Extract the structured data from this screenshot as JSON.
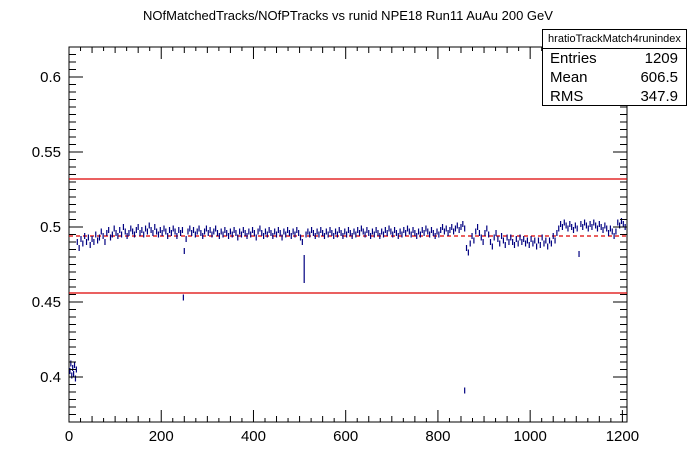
{
  "chart_data": {
    "type": "scatter",
    "title": "NOfMatchedTracks/NOfPTracks vs runid NPE18 Run11 AuAu 200 GeV",
    "xlim": [
      0,
      1210
    ],
    "ylim": [
      0.37,
      0.62
    ],
    "x_ticks": [
      0,
      200,
      400,
      600,
      800,
      1000,
      1200
    ],
    "y_ticks": [
      0.4,
      0.45,
      0.5,
      0.55,
      0.6
    ],
    "x_tick_labels": [
      "0",
      "200",
      "400",
      "600",
      "800",
      "1000",
      "1200"
    ],
    "y_tick_labels": [
      "0.4",
      "0.45",
      "0.5",
      "0.55",
      "0.6"
    ],
    "reference_lines": [
      {
        "y": 0.532,
        "style": "solid",
        "color": "#dd0000"
      },
      {
        "y": 0.494,
        "style": "dashed",
        "color": "#dd0000"
      },
      {
        "y": 0.456,
        "style": "solid",
        "color": "#dd0000"
      }
    ],
    "series": [
      {
        "color": "#000080",
        "points": [
          [
            2,
            0.404
          ],
          [
            4,
            0.409
          ],
          [
            6,
            0.401
          ],
          [
            8,
            0.406
          ],
          [
            10,
            0.402
          ],
          [
            12,
            0.408
          ],
          [
            14,
            0.399
          ],
          [
            16,
            0.405
          ],
          [
            18,
            0.49
          ],
          [
            22,
            0.486
          ],
          [
            26,
            0.492
          ],
          [
            30,
            0.489
          ],
          [
            34,
            0.494
          ],
          [
            38,
            0.49
          ],
          [
            42,
            0.493
          ],
          [
            46,
            0.488
          ],
          [
            50,
            0.492
          ],
          [
            54,
            0.49
          ],
          [
            58,
            0.495
          ],
          [
            62,
            0.491
          ],
          [
            66,
            0.493
          ],
          [
            70,
            0.497
          ],
          [
            74,
            0.494
          ],
          [
            78,
            0.49
          ],
          [
            82,
            0.496
          ],
          [
            86,
            0.498
          ],
          [
            90,
            0.493
          ],
          [
            94,
            0.495
          ],
          [
            98,
            0.499
          ],
          [
            102,
            0.496
          ],
          [
            106,
            0.494
          ],
          [
            110,
            0.498
          ],
          [
            114,
            0.495
          ],
          [
            118,
            0.5
          ],
          [
            122,
            0.497
          ],
          [
            126,
            0.494
          ],
          [
            130,
            0.496
          ],
          [
            134,
            0.499
          ],
          [
            138,
            0.497
          ],
          [
            142,
            0.495
          ],
          [
            146,
            0.498
          ],
          [
            150,
            0.5
          ],
          [
            154,
            0.496
          ],
          [
            158,
            0.498
          ],
          [
            162,
            0.495
          ],
          [
            166,
            0.499
          ],
          [
            170,
            0.497
          ],
          [
            174,
            0.501
          ],
          [
            178,
            0.498
          ],
          [
            182,
            0.496
          ],
          [
            186,
            0.5
          ],
          [
            190,
            0.497
          ],
          [
            194,
            0.495
          ],
          [
            198,
            0.498
          ],
          [
            202,
            0.496
          ],
          [
            206,
            0.499
          ],
          [
            210,
            0.497
          ],
          [
            214,
            0.494
          ],
          [
            218,
            0.498
          ],
          [
            222,
            0.496
          ],
          [
            226,
            0.499
          ],
          [
            230,
            0.497
          ],
          [
            234,
            0.494
          ],
          [
            238,
            0.498
          ],
          [
            242,
            0.496
          ],
          [
            246,
            0.498
          ],
          [
            250,
            0.484
          ],
          [
            254,
            0.492
          ],
          [
            258,
            0.497
          ],
          [
            262,
            0.499
          ],
          [
            266,
            0.496
          ],
          [
            270,
            0.498
          ],
          [
            274,
            0.495
          ],
          [
            278,
            0.497
          ],
          [
            282,
            0.499
          ],
          [
            286,
            0.496
          ],
          [
            290,
            0.494
          ],
          [
            294,
            0.497
          ],
          [
            298,
            0.499
          ],
          [
            302,
            0.496
          ],
          [
            306,
            0.498
          ],
          [
            310,
            0.495
          ],
          [
            314,
            0.497
          ],
          [
            318,
            0.499
          ],
          [
            322,
            0.496
          ],
          [
            326,
            0.494
          ],
          [
            330,
            0.497
          ],
          [
            334,
            0.495
          ],
          [
            338,
            0.498
          ],
          [
            342,
            0.496
          ],
          [
            346,
            0.494
          ],
          [
            350,
            0.497
          ],
          [
            354,
            0.495
          ],
          [
            358,
            0.498
          ],
          [
            362,
            0.496
          ],
          [
            366,
            0.493
          ],
          [
            370,
            0.497
          ],
          [
            374,
            0.495
          ],
          [
            378,
            0.498
          ],
          [
            382,
            0.496
          ],
          [
            386,
            0.494
          ],
          [
            390,
            0.497
          ],
          [
            394,
            0.495
          ],
          [
            398,
            0.498
          ],
          [
            402,
            0.496
          ],
          [
            406,
            0.493
          ],
          [
            410,
            0.497
          ],
          [
            414,
            0.499
          ],
          [
            418,
            0.496
          ],
          [
            422,
            0.494
          ],
          [
            426,
            0.497
          ],
          [
            430,
            0.495
          ],
          [
            434,
            0.498
          ],
          [
            438,
            0.496
          ],
          [
            442,
            0.494
          ],
          [
            446,
            0.497
          ],
          [
            450,
            0.495
          ],
          [
            454,
            0.498
          ],
          [
            458,
            0.496
          ],
          [
            462,
            0.493
          ],
          [
            466,
            0.497
          ],
          [
            470,
            0.495
          ],
          [
            474,
            0.498
          ],
          [
            478,
            0.496
          ],
          [
            482,
            0.494
          ],
          [
            486,
            0.497
          ],
          [
            490,
            0.495
          ],
          [
            494,
            0.498
          ],
          [
            498,
            0.496
          ],
          [
            502,
            0.493
          ],
          [
            506,
            0.49
          ],
          [
            510,
            0.472
          ],
          [
            514,
            0.495
          ],
          [
            518,
            0.497
          ],
          [
            522,
            0.495
          ],
          [
            526,
            0.498
          ],
          [
            530,
            0.496
          ],
          [
            534,
            0.494
          ],
          [
            538,
            0.497
          ],
          [
            542,
            0.495
          ],
          [
            546,
            0.498
          ],
          [
            550,
            0.496
          ],
          [
            554,
            0.494
          ],
          [
            558,
            0.497
          ],
          [
            562,
            0.495
          ],
          [
            566,
            0.498
          ],
          [
            570,
            0.496
          ],
          [
            574,
            0.494
          ],
          [
            578,
            0.497
          ],
          [
            582,
            0.495
          ],
          [
            586,
            0.498
          ],
          [
            590,
            0.496
          ],
          [
            594,
            0.494
          ],
          [
            598,
            0.497
          ],
          [
            602,
            0.495
          ],
          [
            606,
            0.498
          ],
          [
            610,
            0.496
          ],
          [
            614,
            0.494
          ],
          [
            618,
            0.497
          ],
          [
            622,
            0.495
          ],
          [
            626,
            0.498
          ],
          [
            630,
            0.496
          ],
          [
            634,
            0.499
          ],
          [
            638,
            0.497
          ],
          [
            642,
            0.495
          ],
          [
            646,
            0.498
          ],
          [
            650,
            0.496
          ],
          [
            654,
            0.494
          ],
          [
            658,
            0.497
          ],
          [
            662,
            0.495
          ],
          [
            666,
            0.498
          ],
          [
            670,
            0.496
          ],
          [
            674,
            0.494
          ],
          [
            678,
            0.497
          ],
          [
            682,
            0.495
          ],
          [
            686,
            0.498
          ],
          [
            690,
            0.496
          ],
          [
            694,
            0.499
          ],
          [
            698,
            0.497
          ],
          [
            702,
            0.495
          ],
          [
            706,
            0.498
          ],
          [
            710,
            0.496
          ],
          [
            714,
            0.494
          ],
          [
            718,
            0.497
          ],
          [
            722,
            0.495
          ],
          [
            726,
            0.498
          ],
          [
            730,
            0.496
          ],
          [
            734,
            0.499
          ],
          [
            738,
            0.497
          ],
          [
            742,
            0.495
          ],
          [
            746,
            0.498
          ],
          [
            750,
            0.496
          ],
          [
            754,
            0.494
          ],
          [
            758,
            0.497
          ],
          [
            762,
            0.495
          ],
          [
            766,
            0.498
          ],
          [
            770,
            0.496
          ],
          [
            774,
            0.499
          ],
          [
            778,
            0.497
          ],
          [
            782,
            0.495
          ],
          [
            786,
            0.498
          ],
          [
            790,
            0.496
          ],
          [
            794,
            0.494
          ],
          [
            798,
            0.497
          ],
          [
            802,
            0.495
          ],
          [
            806,
            0.498
          ],
          [
            810,
            0.5
          ],
          [
            814,
            0.497
          ],
          [
            818,
            0.499
          ],
          [
            822,
            0.496
          ],
          [
            826,
            0.498
          ],
          [
            830,
            0.5
          ],
          [
            834,
            0.497
          ],
          [
            838,
            0.499
          ],
          [
            842,
            0.501
          ],
          [
            846,
            0.498
          ],
          [
            850,
            0.5
          ],
          [
            854,
            0.502
          ],
          [
            858,
            0.499
          ],
          [
            862,
            0.486
          ],
          [
            866,
            0.483
          ],
          [
            870,
            0.489
          ],
          [
            874,
            0.494
          ],
          [
            878,
            0.491
          ],
          [
            882,
            0.497
          ],
          [
            886,
            0.5
          ],
          [
            890,
            0.496
          ],
          [
            894,
            0.493
          ],
          [
            898,
            0.49
          ],
          [
            902,
            0.496
          ],
          [
            906,
            0.499
          ],
          [
            910,
            0.495
          ],
          [
            914,
            0.49
          ],
          [
            918,
            0.487
          ],
          [
            922,
            0.493
          ],
          [
            926,
            0.496
          ],
          [
            930,
            0.492
          ],
          [
            934,
            0.489
          ],
          [
            938,
            0.494
          ],
          [
            942,
            0.491
          ],
          [
            946,
            0.488
          ],
          [
            950,
            0.493
          ],
          [
            954,
            0.49
          ],
          [
            958,
            0.493
          ],
          [
            962,
            0.49
          ],
          [
            966,
            0.488
          ],
          [
            970,
            0.492
          ],
          [
            974,
            0.489
          ],
          [
            978,
            0.493
          ],
          [
            982,
            0.49
          ],
          [
            986,
            0.492
          ],
          [
            990,
            0.489
          ],
          [
            994,
            0.491
          ],
          [
            998,
            0.488
          ],
          [
            1002,
            0.492
          ],
          [
            1006,
            0.489
          ],
          [
            1010,
            0.491
          ],
          [
            1014,
            0.487
          ],
          [
            1018,
            0.491
          ],
          [
            1022,
            0.488
          ],
          [
            1026,
            0.493
          ],
          [
            1030,
            0.489
          ],
          [
            1034,
            0.491
          ],
          [
            1038,
            0.487
          ],
          [
            1042,
            0.491
          ],
          [
            1046,
            0.489
          ],
          [
            1050,
            0.494
          ],
          [
            1054,
            0.491
          ],
          [
            1058,
            0.496
          ],
          [
            1062,
            0.499
          ],
          [
            1066,
            0.502
          ],
          [
            1070,
            0.5
          ],
          [
            1074,
            0.503
          ],
          [
            1078,
            0.501
          ],
          [
            1082,
            0.499
          ],
          [
            1086,
            0.502
          ],
          [
            1090,
            0.5
          ],
          [
            1094,
            0.498
          ],
          [
            1098,
            0.501
          ],
          [
            1102,
            0.499
          ],
          [
            1106,
            0.482
          ],
          [
            1110,
            0.502
          ],
          [
            1114,
            0.5
          ],
          [
            1118,
            0.503
          ],
          [
            1122,
            0.501
          ],
          [
            1126,
            0.499
          ],
          [
            1130,
            0.502
          ],
          [
            1134,
            0.5
          ],
          [
            1138,
            0.503
          ],
          [
            1142,
            0.501
          ],
          [
            1146,
            0.499
          ],
          [
            1150,
            0.502
          ],
          [
            1154,
            0.5
          ],
          [
            1158,
            0.498
          ],
          [
            1162,
            0.501
          ],
          [
            1166,
            0.499
          ],
          [
            1170,
            0.496
          ],
          [
            1174,
            0.499
          ],
          [
            1178,
            0.497
          ],
          [
            1182,
            0.494
          ],
          [
            1186,
            0.497
          ],
          [
            1190,
            0.503
          ],
          [
            1194,
            0.501
          ],
          [
            1198,
            0.504
          ],
          [
            1202,
            0.502
          ],
          [
            1206,
            0.5
          ],
          [
            248,
            0.453
          ],
          [
            858,
            0.391
          ]
        ]
      }
    ],
    "stats_box": {
      "name": "hratioTrackMatch4runindex",
      "entries_label": "Entries",
      "entries": "1209",
      "mean_label": "Mean",
      "mean": "606.5",
      "rms_label": "RMS",
      "rms": "347.9"
    }
  }
}
